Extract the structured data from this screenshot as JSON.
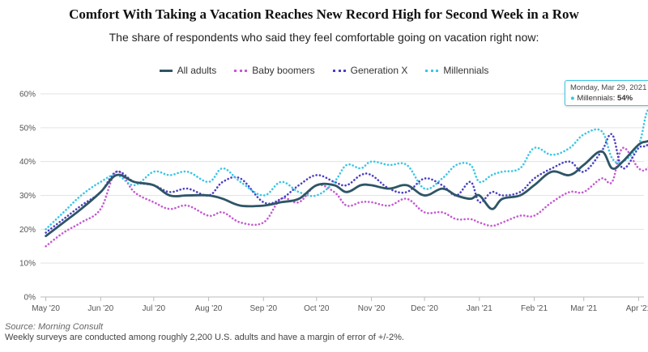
{
  "title": "Comfort With Taking a Vacation Reaches New Record High for Second Week in a Row",
  "subtitle": "The share of respondents who said they feel comfortable going on vacation right now:",
  "source": "Source: Morning Consult",
  "note": "Weekly surveys are conducted among roughly 2,200 U.S. adults and have a margin of error of +/-2%.",
  "tooltip": {
    "date": "Monday, Mar 29, 2021",
    "series": "Millennials",
    "value": "54%"
  },
  "chart_data": {
    "type": "line",
    "ylim": [
      0,
      60
    ],
    "yticks": [
      "0%",
      "10%",
      "20%",
      "30%",
      "40%",
      "50%",
      "60%"
    ],
    "ytick_values": [
      0,
      10,
      20,
      30,
      40,
      50,
      60
    ],
    "xticks": [
      {
        "label": "May '20",
        "x": 0
      },
      {
        "label": "Jun '20",
        "x": 31
      },
      {
        "label": "Jul '20",
        "x": 61
      },
      {
        "label": "Aug '20",
        "x": 92
      },
      {
        "label": "Sep '20",
        "x": 123
      },
      {
        "label": "Oct '20",
        "x": 153
      },
      {
        "label": "Nov '20",
        "x": 184
      },
      {
        "label": "Dec '20",
        "x": 214
      },
      {
        "label": "Jan '21",
        "x": 245
      },
      {
        "label": "Feb '21",
        "x": 276
      },
      {
        "label": "Mar '21",
        "x": 304
      },
      {
        "label": "Apr '21",
        "x": 335
      }
    ],
    "x_unit": "days since May 1, 2020",
    "xlim": [
      -3,
      338
    ],
    "grid": true,
    "legend_position": "top-center",
    "series": [
      {
        "name": "All adults",
        "color": "#2e5566",
        "style": "solid",
        "points": [
          [
            0,
            18
          ],
          [
            10,
            22
          ],
          [
            20,
            26
          ],
          [
            31,
            31
          ],
          [
            40,
            36
          ],
          [
            50,
            34
          ],
          [
            61,
            33
          ],
          [
            70,
            30
          ],
          [
            80,
            30
          ],
          [
            92,
            30
          ],
          [
            100,
            29
          ],
          [
            110,
            27
          ],
          [
            123,
            27
          ],
          [
            133,
            28
          ],
          [
            143,
            29
          ],
          [
            153,
            33
          ],
          [
            163,
            33
          ],
          [
            170,
            31
          ],
          [
            178,
            33
          ],
          [
            184,
            33
          ],
          [
            194,
            32
          ],
          [
            204,
            33
          ],
          [
            214,
            30
          ],
          [
            224,
            32
          ],
          [
            232,
            30
          ],
          [
            240,
            29
          ],
          [
            245,
            30
          ],
          [
            252,
            26
          ],
          [
            258,
            29
          ],
          [
            268,
            30
          ],
          [
            276,
            33
          ],
          [
            286,
            37
          ],
          [
            296,
            36
          ],
          [
            304,
            39
          ],
          [
            314,
            43
          ],
          [
            320,
            38
          ],
          [
            326,
            40
          ],
          [
            335,
            45
          ],
          [
            340,
            46
          ],
          [
            345,
            47
          ]
        ]
      },
      {
        "name": "Baby boomers",
        "color": "#c45bd1",
        "style": "dotted",
        "points": [
          [
            0,
            15
          ],
          [
            10,
            19
          ],
          [
            20,
            22
          ],
          [
            31,
            26
          ],
          [
            40,
            37
          ],
          [
            50,
            31
          ],
          [
            61,
            28
          ],
          [
            70,
            26
          ],
          [
            80,
            27
          ],
          [
            92,
            24
          ],
          [
            100,
            25
          ],
          [
            110,
            22
          ],
          [
            123,
            22
          ],
          [
            133,
            29
          ],
          [
            143,
            28
          ],
          [
            153,
            33
          ],
          [
            163,
            31
          ],
          [
            170,
            27
          ],
          [
            178,
            28
          ],
          [
            184,
            28
          ],
          [
            194,
            27
          ],
          [
            204,
            29
          ],
          [
            214,
            25
          ],
          [
            224,
            25
          ],
          [
            232,
            23
          ],
          [
            240,
            23
          ],
          [
            245,
            22
          ],
          [
            252,
            21
          ],
          [
            258,
            22
          ],
          [
            268,
            24
          ],
          [
            276,
            24
          ],
          [
            286,
            28
          ],
          [
            296,
            31
          ],
          [
            304,
            31
          ],
          [
            314,
            35
          ],
          [
            320,
            34
          ],
          [
            326,
            44
          ],
          [
            335,
            38
          ],
          [
            340,
            38
          ],
          [
            345,
            42
          ]
        ]
      },
      {
        "name": "Generation X",
        "color": "#4a3fc4",
        "style": "dotted",
        "points": [
          [
            0,
            19
          ],
          [
            10,
            23
          ],
          [
            20,
            27
          ],
          [
            31,
            31
          ],
          [
            40,
            37
          ],
          [
            50,
            34
          ],
          [
            61,
            33
          ],
          [
            70,
            31
          ],
          [
            80,
            32
          ],
          [
            92,
            30
          ],
          [
            100,
            34
          ],
          [
            110,
            35
          ],
          [
            123,
            28
          ],
          [
            133,
            29
          ],
          [
            143,
            33
          ],
          [
            153,
            36
          ],
          [
            163,
            34
          ],
          [
            170,
            33
          ],
          [
            178,
            36
          ],
          [
            184,
            36
          ],
          [
            194,
            32
          ],
          [
            204,
            31
          ],
          [
            214,
            35
          ],
          [
            224,
            33
          ],
          [
            232,
            30
          ],
          [
            240,
            34
          ],
          [
            245,
            28
          ],
          [
            252,
            31
          ],
          [
            258,
            30
          ],
          [
            268,
            31
          ],
          [
            276,
            35
          ],
          [
            286,
            38
          ],
          [
            296,
            40
          ],
          [
            304,
            37
          ],
          [
            314,
            43
          ],
          [
            320,
            48
          ],
          [
            326,
            38
          ],
          [
            335,
            44
          ],
          [
            340,
            45
          ],
          [
            345,
            51
          ]
        ]
      },
      {
        "name": "Millennials",
        "color": "#3ac6e6",
        "style": "dotted",
        "points": [
          [
            0,
            20
          ],
          [
            10,
            25
          ],
          [
            20,
            30
          ],
          [
            31,
            34
          ],
          [
            40,
            36
          ],
          [
            50,
            33
          ],
          [
            61,
            37
          ],
          [
            70,
            36
          ],
          [
            80,
            37
          ],
          [
            92,
            34
          ],
          [
            100,
            38
          ],
          [
            110,
            34
          ],
          [
            123,
            30
          ],
          [
            133,
            34
          ],
          [
            143,
            31
          ],
          [
            153,
            30
          ],
          [
            163,
            34
          ],
          [
            170,
            39
          ],
          [
            178,
            38
          ],
          [
            184,
            40
          ],
          [
            194,
            39
          ],
          [
            204,
            39
          ],
          [
            214,
            32
          ],
          [
            224,
            35
          ],
          [
            232,
            39
          ],
          [
            240,
            39
          ],
          [
            245,
            34
          ],
          [
            252,
            36
          ],
          [
            258,
            37
          ],
          [
            268,
            38
          ],
          [
            276,
            44
          ],
          [
            286,
            42
          ],
          [
            296,
            44
          ],
          [
            304,
            48
          ],
          [
            314,
            49
          ],
          [
            320,
            41
          ],
          [
            326,
            40
          ],
          [
            335,
            45
          ],
          [
            340,
            55
          ],
          [
            345,
            54
          ]
        ]
      }
    ]
  }
}
